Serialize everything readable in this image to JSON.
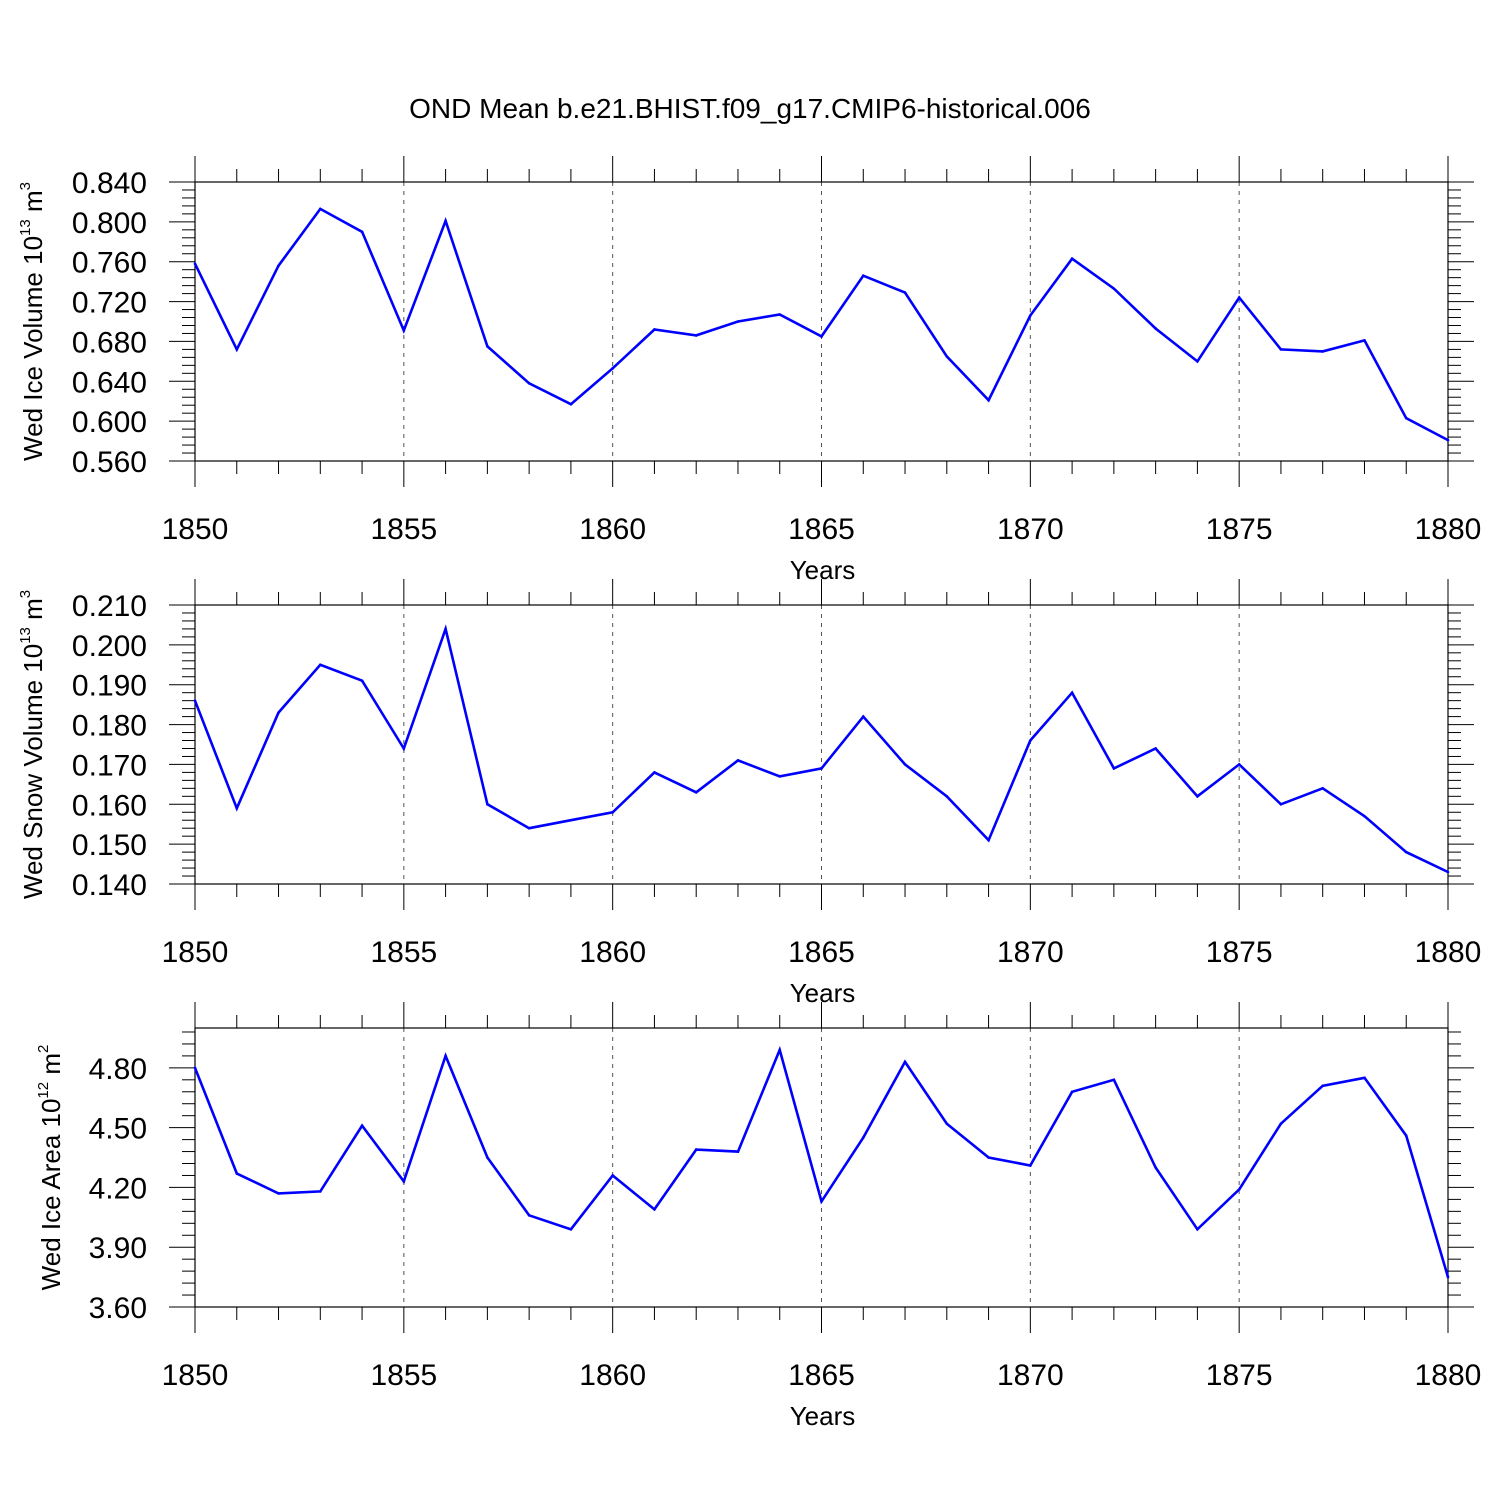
{
  "title": "OND Mean b.e21.BHIST.f09_g17.CMIP6-historical.006",
  "colors": {
    "line": "#0000ff",
    "axis": "#000000",
    "grid": "#555555"
  },
  "chart_data": [
    {
      "type": "line",
      "ylabel": {
        "text": "Wed Ice Volume 10",
        "sup1": "13",
        "mid": " m",
        "sup2": "3"
      },
      "xlabel": "Years",
      "xlim": [
        1850,
        1880
      ],
      "ylim": [
        0.56,
        0.84
      ],
      "x_ticks": [
        "1850",
        "1855",
        "1860",
        "1865",
        "1870",
        "1875",
        "1880"
      ],
      "y_ticks": [
        "0.560",
        "0.600",
        "0.640",
        "0.680",
        "0.720",
        "0.760",
        "0.800",
        "0.840"
      ],
      "grid": "vertical dashed at major x ticks",
      "x": [
        1850,
        1851,
        1852,
        1853,
        1854,
        1855,
        1856,
        1857,
        1858,
        1859,
        1860,
        1861,
        1862,
        1863,
        1864,
        1865,
        1866,
        1867,
        1868,
        1869,
        1870,
        1871,
        1872,
        1873,
        1874,
        1875,
        1876,
        1877,
        1878,
        1879,
        1880
      ],
      "values": [
        0.758,
        0.672,
        0.756,
        0.813,
        0.79,
        0.691,
        0.801,
        0.675,
        0.638,
        0.617,
        0.653,
        0.692,
        0.686,
        0.7,
        0.707,
        0.685,
        0.746,
        0.729,
        0.665,
        0.621,
        0.706,
        0.763,
        0.733,
        0.693,
        0.66,
        0.724,
        0.672,
        0.67,
        0.681,
        0.603,
        0.581
      ]
    },
    {
      "type": "line",
      "ylabel": {
        "text": "Wed Snow Volume 10",
        "sup1": "13",
        "mid": " m",
        "sup2": "3"
      },
      "xlabel": "Years",
      "xlim": [
        1850,
        1880
      ],
      "ylim": [
        0.14,
        0.21
      ],
      "x_ticks": [
        "1850",
        "1855",
        "1860",
        "1865",
        "1870",
        "1875",
        "1880"
      ],
      "y_ticks": [
        "0.140",
        "0.150",
        "0.160",
        "0.170",
        "0.180",
        "0.190",
        "0.200",
        "0.210"
      ],
      "grid": "vertical dashed at major x ticks",
      "x": [
        1850,
        1851,
        1852,
        1853,
        1854,
        1855,
        1856,
        1857,
        1858,
        1859,
        1860,
        1861,
        1862,
        1863,
        1864,
        1865,
        1866,
        1867,
        1868,
        1869,
        1870,
        1871,
        1872,
        1873,
        1874,
        1875,
        1876,
        1877,
        1878,
        1879,
        1880
      ],
      "values": [
        0.186,
        0.159,
        0.183,
        0.195,
        0.191,
        0.174,
        0.204,
        0.16,
        0.154,
        0.156,
        0.158,
        0.168,
        0.163,
        0.171,
        0.167,
        0.169,
        0.182,
        0.17,
        0.162,
        0.151,
        0.176,
        0.188,
        0.169,
        0.174,
        0.162,
        0.17,
        0.16,
        0.164,
        0.157,
        0.148,
        0.143
      ]
    },
    {
      "type": "line",
      "ylabel": {
        "text": "Wed Ice Area 10",
        "sup1": "12",
        "mid": " m",
        "sup2": "2"
      },
      "xlabel": "Years",
      "xlim": [
        1850,
        1880
      ],
      "ylim": [
        3.6,
        5.0
      ],
      "x_ticks": [
        "1850",
        "1855",
        "1860",
        "1865",
        "1870",
        "1875",
        "1880"
      ],
      "y_ticks": [
        "3.60",
        "3.90",
        "4.20",
        "4.50",
        "4.80"
      ],
      "grid": "vertical dashed at major x ticks",
      "x": [
        1850,
        1851,
        1852,
        1853,
        1854,
        1855,
        1856,
        1857,
        1858,
        1859,
        1860,
        1861,
        1862,
        1863,
        1864,
        1865,
        1866,
        1867,
        1868,
        1869,
        1870,
        1871,
        1872,
        1873,
        1874,
        1875,
        1876,
        1877,
        1878,
        1879,
        1880
      ],
      "values": [
        4.8,
        4.27,
        4.17,
        4.18,
        4.51,
        4.23,
        4.86,
        4.35,
        4.06,
        3.99,
        4.26,
        4.09,
        4.39,
        4.38,
        4.89,
        4.13,
        4.45,
        4.83,
        4.52,
        4.35,
        4.31,
        4.68,
        4.74,
        4.3,
        3.99,
        4.19,
        4.52,
        4.71,
        4.75,
        4.46,
        3.75
      ]
    }
  ]
}
